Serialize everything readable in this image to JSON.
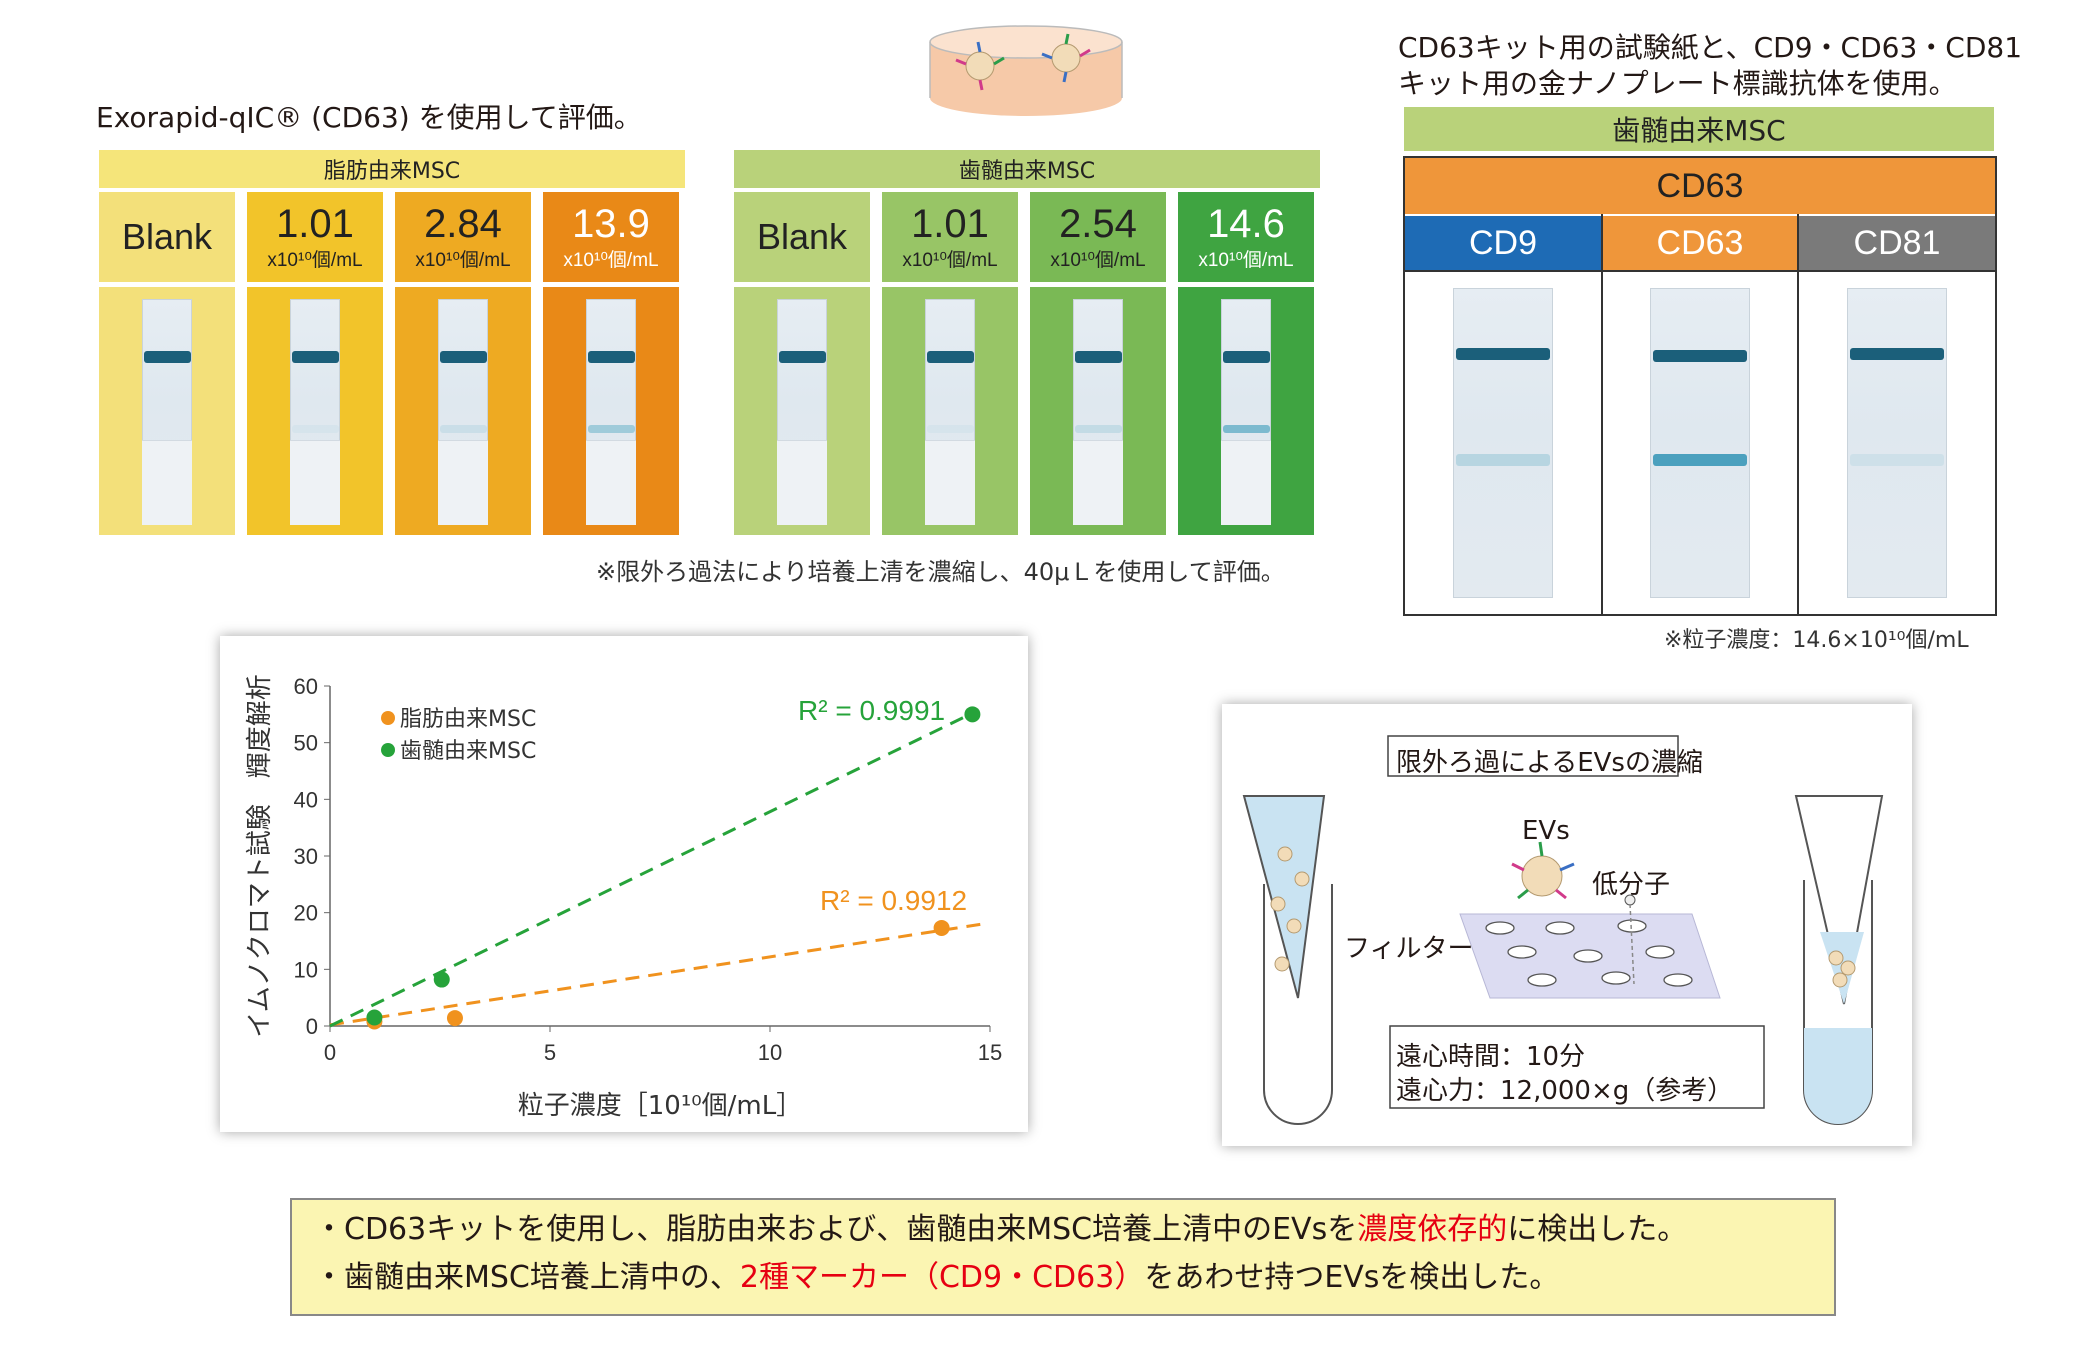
{
  "top_left_caption": "Exorapid-qIC® (CD63) を使用して評価。",
  "adipose": {
    "header": "脂肪由来MSC",
    "cells": [
      {
        "value": "Blank",
        "unit": ""
      },
      {
        "value": "1.01",
        "unit": "x10¹⁰個/mL"
      },
      {
        "value": "2.84",
        "unit": "x10¹⁰個/mL"
      },
      {
        "value": "13.9",
        "unit": "x10¹⁰個/mL"
      }
    ],
    "colors": [
      "#f3e07a",
      "#f2c42a",
      "#eeaa22",
      "#e98917"
    ]
  },
  "dental": {
    "header": "歯髄由来MSC",
    "cells": [
      {
        "value": "Blank",
        "unit": ""
      },
      {
        "value": "1.01",
        "unit": "x10¹⁰個/mL"
      },
      {
        "value": "2.54",
        "unit": "x10¹⁰個/mL"
      },
      {
        "value": "14.6",
        "unit": "x10¹⁰個/mL"
      }
    ],
    "colors": [
      "#b9d27a",
      "#98c566",
      "#7ab955",
      "#3fa441"
    ]
  },
  "mid_note": "※限外ろ過法により培養上清を濃縮し、40μＬを使用して評価。",
  "right_caption": [
    "CD63キット用の試験紙と、CD9・CD63・CD81",
    "キット用の金ナノプレート標識抗体を使用。"
  ],
  "right_table": {
    "header": "歯髄由来MSC",
    "top": "CD63",
    "cols": [
      "CD9",
      "CD63",
      "CD81"
    ],
    "colors": {
      "top": "#ef963a",
      "cd9": "#1e6bb5",
      "cd63": "#ef963a",
      "cd81": "#7a7a7a",
      "header": "#b9d27a"
    },
    "note": "※粒子濃度：14.6×10¹⁰個/mL"
  },
  "chart_data": {
    "type": "scatter",
    "xlabel": "粒子濃度［10¹⁰個/mL］",
    "ylabel": "イムノクロマト試験　輝度解析",
    "xlim": [
      0,
      15
    ],
    "ylim": [
      0,
      60
    ],
    "xticks": [
      "0",
      "5",
      "10",
      "15"
    ],
    "yticks": [
      "0",
      "10",
      "20",
      "30",
      "40",
      "50",
      "60"
    ],
    "series": [
      {
        "name": "脂肪由来MSC",
        "color": "#f0921e",
        "x": [
          1.01,
          2.84,
          13.9
        ],
        "y": [
          0.8,
          1.4,
          17.3
        ],
        "fit": {
          "slope": 1.2,
          "intercept": 0.2
        },
        "r2": "R² = 0.9912"
      },
      {
        "name": "歯髄由来MSC",
        "color": "#26a33a",
        "x": [
          1.01,
          2.54,
          14.6
        ],
        "y": [
          1.5,
          8.2,
          55.0
        ],
        "fit": {
          "slope": 3.85,
          "intercept": -1.0
        },
        "r2": "R² = 0.9991"
      }
    ]
  },
  "filter_panel": {
    "title": "限外ろ過によるEVsの濃縮",
    "evs": "EVs",
    "small": "低分子",
    "filter": "フィルター",
    "time": "遠心時間：10分",
    "force": "遠心力：12,000×g（参考）"
  },
  "summary": {
    "line1": {
      "pre": "・CD63キットを使用し、脂肪由来および、歯髄由来MSC培養上清中のEVsを",
      "hl": "濃度依存的",
      "post": "に検出した。"
    },
    "line2": {
      "pre": "・歯髄由来MSC培養上清中の、",
      "hl": "2種マーカー（CD9・CD63）",
      "post": "をあわせ持つEVsを検出した。"
    }
  }
}
